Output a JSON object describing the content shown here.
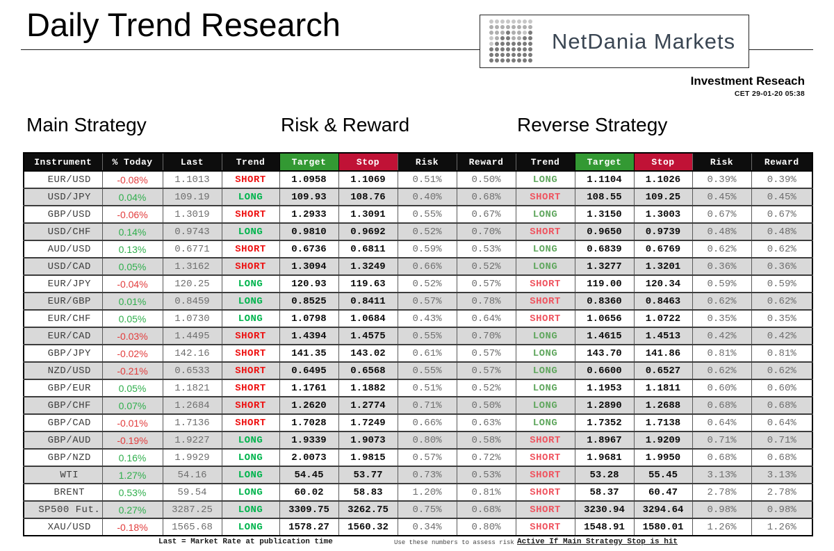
{
  "header": {
    "title": "Daily Trend Research",
    "logo": {
      "text": "NetDania Markets",
      "dot_palette": {
        "1": "#c7c7c7",
        "2": "#aeaeae",
        "3": "#7a7a7a"
      },
      "dot_rows": [
        "11111111",
        "22222222",
        "22232213",
        "12332233",
        "13333333",
        "33333333",
        "33333333",
        "33333333"
      ]
    },
    "research_label": "Investment Reseach",
    "timestamp": "CET  29-01-20 05:38"
  },
  "sections": {
    "main": "Main Strategy",
    "risk": "Risk & Reward",
    "reverse": "Reverse Strategy"
  },
  "colors": {
    "header_bg": "#0d0d0d",
    "target_header_bg": "#339933",
    "stop_header_bg": "#c01236",
    "alt_row_bg": "#d9d9d9",
    "trend_long_main": "#00b44d",
    "trend_short_main": "#ee1111",
    "trend_long_reverse": "#61a75f",
    "trend_short_reverse": "#ef5560",
    "pct_positive": "#2fae4c",
    "pct_negative": "#e23c3c"
  },
  "table": {
    "headers": [
      "Instrument",
      "% Today",
      "Last",
      "Trend",
      "Target",
      "Stop",
      "Risk",
      "Reward",
      "Trend",
      "Target",
      "Stop",
      "Risk",
      "Reward"
    ],
    "column_keys": [
      "instrument",
      "pct-today",
      "last",
      "trend-main",
      "target-main",
      "stop-main",
      "risk-main",
      "reward-main",
      "trend-reverse",
      "target-reverse",
      "stop-reverse",
      "risk-reverse",
      "reward-reverse"
    ],
    "rows": [
      [
        "EUR/USD",
        "-0.08%",
        "1.1013",
        "SHORT",
        "1.0958",
        "1.1069",
        "0.51%",
        "0.50%",
        "LONG",
        "1.1104",
        "1.1026",
        "0.39%",
        "0.39%"
      ],
      [
        "USD/JPY",
        "0.04%",
        "109.19",
        "LONG",
        "109.93",
        "108.76",
        "0.40%",
        "0.68%",
        "SHORT",
        "108.55",
        "109.25",
        "0.45%",
        "0.45%"
      ],
      [
        "GBP/USD",
        "-0.06%",
        "1.3019",
        "SHORT",
        "1.2933",
        "1.3091",
        "0.55%",
        "0.67%",
        "LONG",
        "1.3150",
        "1.3003",
        "0.67%",
        "0.67%"
      ],
      [
        "USD/CHF",
        "0.14%",
        "0.9743",
        "LONG",
        "0.9810",
        "0.9692",
        "0.52%",
        "0.70%",
        "SHORT",
        "0.9650",
        "0.9739",
        "0.48%",
        "0.48%"
      ],
      [
        "AUD/USD",
        "0.13%",
        "0.6771",
        "SHORT",
        "0.6736",
        "0.6811",
        "0.59%",
        "0.53%",
        "LONG",
        "0.6839",
        "0.6769",
        "0.62%",
        "0.62%"
      ],
      [
        "USD/CAD",
        "0.05%",
        "1.3162",
        "SHORT",
        "1.3094",
        "1.3249",
        "0.66%",
        "0.52%",
        "LONG",
        "1.3277",
        "1.3201",
        "0.36%",
        "0.36%"
      ],
      [
        "EUR/JPY",
        "-0.04%",
        "120.25",
        "LONG",
        "120.93",
        "119.63",
        "0.52%",
        "0.57%",
        "SHORT",
        "119.00",
        "120.34",
        "0.59%",
        "0.59%"
      ],
      [
        "EUR/GBP",
        "0.01%",
        "0.8459",
        "LONG",
        "0.8525",
        "0.8411",
        "0.57%",
        "0.78%",
        "SHORT",
        "0.8360",
        "0.8463",
        "0.62%",
        "0.62%"
      ],
      [
        "EUR/CHF",
        "0.05%",
        "1.0730",
        "LONG",
        "1.0798",
        "1.0684",
        "0.43%",
        "0.64%",
        "SHORT",
        "1.0656",
        "1.0722",
        "0.35%",
        "0.35%"
      ],
      [
        "EUR/CAD",
        "-0.03%",
        "1.4495",
        "SHORT",
        "1.4394",
        "1.4575",
        "0.55%",
        "0.70%",
        "LONG",
        "1.4615",
        "1.4513",
        "0.42%",
        "0.42%"
      ],
      [
        "GBP/JPY",
        "-0.02%",
        "142.16",
        "SHORT",
        "141.35",
        "143.02",
        "0.61%",
        "0.57%",
        "LONG",
        "143.70",
        "141.86",
        "0.81%",
        "0.81%"
      ],
      [
        "NZD/USD",
        "-0.21%",
        "0.6533",
        "SHORT",
        "0.6495",
        "0.6568",
        "0.55%",
        "0.57%",
        "LONG",
        "0.6600",
        "0.6527",
        "0.62%",
        "0.62%"
      ],
      [
        "GBP/EUR",
        "0.05%",
        "1.1821",
        "SHORT",
        "1.1761",
        "1.1882",
        "0.51%",
        "0.52%",
        "LONG",
        "1.1953",
        "1.1811",
        "0.60%",
        "0.60%"
      ],
      [
        "GBP/CHF",
        "0.07%",
        "1.2684",
        "SHORT",
        "1.2620",
        "1.2774",
        "0.71%",
        "0.50%",
        "LONG",
        "1.2890",
        "1.2688",
        "0.68%",
        "0.68%"
      ],
      [
        "GBP/CAD",
        "-0.01%",
        "1.7136",
        "SHORT",
        "1.7028",
        "1.7249",
        "0.66%",
        "0.63%",
        "LONG",
        "1.7352",
        "1.7138",
        "0.64%",
        "0.64%"
      ],
      [
        "GBP/AUD",
        "-0.19%",
        "1.9227",
        "LONG",
        "1.9339",
        "1.9073",
        "0.80%",
        "0.58%",
        "SHORT",
        "1.8967",
        "1.9209",
        "0.71%",
        "0.71%"
      ],
      [
        "GBP/NZD",
        "0.16%",
        "1.9929",
        "LONG",
        "2.0073",
        "1.9815",
        "0.57%",
        "0.72%",
        "SHORT",
        "1.9681",
        "1.9950",
        "0.68%",
        "0.68%"
      ],
      [
        "WTI",
        "1.27%",
        "54.16",
        "LONG",
        "54.45",
        "53.77",
        "0.73%",
        "0.53%",
        "SHORT",
        "53.28",
        "55.45",
        "3.13%",
        "3.13%"
      ],
      [
        "BRENT",
        "0.53%",
        "59.54",
        "LONG",
        "60.02",
        "58.83",
        "1.20%",
        "0.81%",
        "SHORT",
        "58.37",
        "60.47",
        "2.78%",
        "2.78%"
      ],
      [
        "SP500 Fut.",
        "0.27%",
        "3287.25",
        "LONG",
        "3309.75",
        "3262.75",
        "0.75%",
        "0.68%",
        "SHORT",
        "3230.94",
        "3294.64",
        "0.98%",
        "0.98%"
      ],
      [
        "XAU/USD",
        "-0.18%",
        "1565.68",
        "LONG",
        "1578.27",
        "1560.32",
        "0.34%",
        "0.80%",
        "SHORT",
        "1548.91",
        "1580.01",
        "1.26%",
        "1.26%"
      ]
    ]
  },
  "footnotes": {
    "last_note": "Last = Market Rate at publication time",
    "risk_note": "Use these numbers to assess risk",
    "active_note": "Active If Main Strategy Stop is hit"
  }
}
